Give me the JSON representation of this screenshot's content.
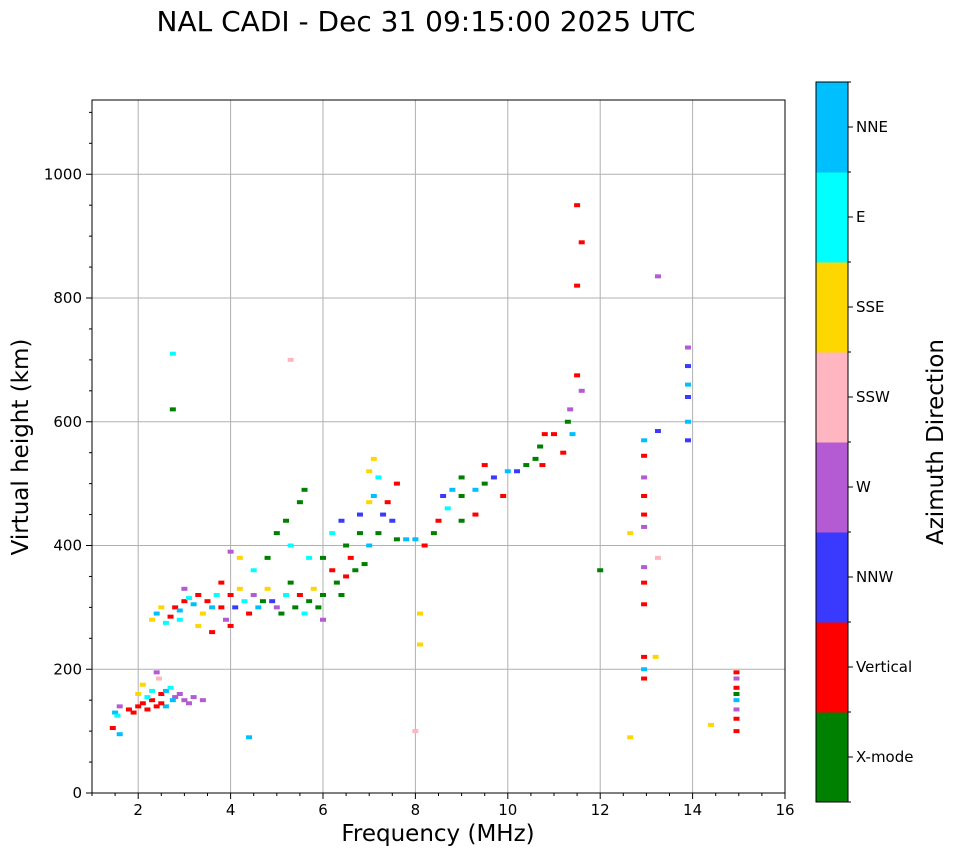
{
  "chart_data": {
    "type": "scatter",
    "title": "NAL CADI - Dec 31 09:15:00 2025 UTC",
    "xlabel": "Frequency (MHz)",
    "ylabel": "Virtual height (km)",
    "xlim": [
      1,
      16
    ],
    "ylim": [
      0,
      1120
    ],
    "xticks": [
      2,
      4,
      6,
      8,
      10,
      12,
      14,
      16
    ],
    "yticks": [
      0,
      200,
      400,
      600,
      800,
      1000
    ],
    "grid": true,
    "colorbar": {
      "label": "Azimuth Direction",
      "categories": [
        {
          "name": "X-mode",
          "color": "#008000"
        },
        {
          "name": "Vertical",
          "color": "#ff0000"
        },
        {
          "name": "NNW",
          "color": "#3a3aff"
        },
        {
          "name": "W",
          "color": "#b45ad2"
        },
        {
          "name": "SSW",
          "color": "#ffb6c1"
        },
        {
          "name": "SSE",
          "color": "#ffd700"
        },
        {
          "name": "E",
          "color": "#00ffff"
        },
        {
          "name": "NNE",
          "color": "#00bfff"
        }
      ]
    },
    "points": [
      [
        1.5,
        130,
        "NNE"
      ],
      [
        1.55,
        125,
        "E"
      ],
      [
        1.6,
        140,
        "W"
      ],
      [
        1.6,
        95,
        "NNE"
      ],
      [
        1.45,
        105,
        "Vertical"
      ],
      [
        1.8,
        135,
        "Vertical"
      ],
      [
        1.9,
        130,
        "Vertical"
      ],
      [
        2.0,
        140,
        "Vertical"
      ],
      [
        2.1,
        145,
        "Vertical"
      ],
      [
        2.2,
        135,
        "Vertical"
      ],
      [
        2.3,
        150,
        "Vertical"
      ],
      [
        2.4,
        140,
        "Vertical"
      ],
      [
        2.5,
        160,
        "Vertical"
      ],
      [
        2.0,
        160,
        "SSE"
      ],
      [
        2.1,
        175,
        "SSE"
      ],
      [
        2.4,
        195,
        "W"
      ],
      [
        2.45,
        185,
        "SSW"
      ],
      [
        2.6,
        165,
        "NNE"
      ],
      [
        2.7,
        170,
        "E"
      ],
      [
        2.8,
        155,
        "W"
      ],
      [
        2.9,
        160,
        "W"
      ],
      [
        3.0,
        150,
        "W"
      ],
      [
        3.1,
        145,
        "W"
      ],
      [
        3.2,
        155,
        "W"
      ],
      [
        3.4,
        150,
        "W"
      ],
      [
        2.75,
        150,
        "NNE"
      ],
      [
        2.6,
        140,
        "NNE"
      ],
      [
        2.2,
        155,
        "E"
      ],
      [
        2.3,
        165,
        "E"
      ],
      [
        2.5,
        145,
        "Vertical"
      ],
      [
        2.3,
        280,
        "SSE"
      ],
      [
        2.4,
        290,
        "NNE"
      ],
      [
        2.6,
        275,
        "E"
      ],
      [
        2.7,
        285,
        "Vertical"
      ],
      [
        2.8,
        300,
        "Vertical"
      ],
      [
        2.9,
        295,
        "NNE"
      ],
      [
        3.0,
        310,
        "Vertical"
      ],
      [
        3.0,
        330,
        "W"
      ],
      [
        3.1,
        315,
        "E"
      ],
      [
        3.2,
        305,
        "NNE"
      ],
      [
        3.3,
        320,
        "Vertical"
      ],
      [
        3.4,
        290,
        "SSE"
      ],
      [
        3.5,
        310,
        "Vertical"
      ],
      [
        3.6,
        300,
        "NNE"
      ],
      [
        3.7,
        320,
        "E"
      ],
      [
        3.8,
        300,
        "Vertical"
      ],
      [
        3.9,
        280,
        "W"
      ],
      [
        4.0,
        320,
        "Vertical"
      ],
      [
        4.0,
        270,
        "Vertical"
      ],
      [
        4.1,
        300,
        "NNW"
      ],
      [
        4.2,
        330,
        "SSE"
      ],
      [
        4.3,
        310,
        "E"
      ],
      [
        4.4,
        290,
        "Vertical"
      ],
      [
        4.5,
        320,
        "W"
      ],
      [
        4.6,
        300,
        "NNE"
      ],
      [
        4.7,
        310,
        "X-mode"
      ],
      [
        4.8,
        330,
        "SSE"
      ],
      [
        4.9,
        310,
        "NNW"
      ],
      [
        5.0,
        300,
        "W"
      ],
      [
        5.1,
        290,
        "X-mode"
      ],
      [
        5.2,
        320,
        "E"
      ],
      [
        5.3,
        340,
        "X-mode"
      ],
      [
        5.4,
        300,
        "X-mode"
      ],
      [
        5.5,
        320,
        "Vertical"
      ],
      [
        5.6,
        290,
        "E"
      ],
      [
        5.7,
        310,
        "X-mode"
      ],
      [
        5.8,
        330,
        "SSE"
      ],
      [
        5.9,
        300,
        "X-mode"
      ],
      [
        6.0,
        280,
        "W"
      ],
      [
        6.0,
        320,
        "X-mode"
      ],
      [
        3.6,
        260,
        "Vertical"
      ],
      [
        3.3,
        270,
        "SSE"
      ],
      [
        2.9,
        280,
        "E"
      ],
      [
        2.5,
        300,
        "SSE"
      ],
      [
        3.8,
        340,
        "Vertical"
      ],
      [
        4.0,
        390,
        "W"
      ],
      [
        4.2,
        380,
        "SSE"
      ],
      [
        4.5,
        360,
        "E"
      ],
      [
        4.8,
        380,
        "X-mode"
      ],
      [
        5.0,
        420,
        "X-mode"
      ],
      [
        5.2,
        440,
        "X-mode"
      ],
      [
        5.5,
        470,
        "X-mode"
      ],
      [
        5.6,
        490,
        "X-mode"
      ],
      [
        5.3,
        400,
        "E"
      ],
      [
        5.7,
        380,
        "E"
      ],
      [
        6.0,
        380,
        "X-mode"
      ],
      [
        6.2,
        360,
        "Vertical"
      ],
      [
        6.3,
        340,
        "X-mode"
      ],
      [
        6.4,
        320,
        "X-mode"
      ],
      [
        6.5,
        350,
        "Vertical"
      ],
      [
        6.2,
        420,
        "E"
      ],
      [
        6.4,
        440,
        "NNW"
      ],
      [
        6.5,
        400,
        "X-mode"
      ],
      [
        6.6,
        380,
        "Vertical"
      ],
      [
        6.7,
        360,
        "X-mode"
      ],
      [
        6.8,
        420,
        "X-mode"
      ],
      [
        6.8,
        450,
        "NNW"
      ],
      [
        6.9,
        370,
        "X-mode"
      ],
      [
        7.0,
        400,
        "NNE"
      ],
      [
        7.0,
        470,
        "SSE"
      ],
      [
        7.1,
        480,
        "NNE"
      ],
      [
        7.1,
        540,
        "SSE"
      ],
      [
        7.2,
        510,
        "E"
      ],
      [
        7.2,
        420,
        "X-mode"
      ],
      [
        7.3,
        450,
        "NNW"
      ],
      [
        7.4,
        470,
        "Vertical"
      ],
      [
        7.5,
        440,
        "NNW"
      ],
      [
        7.6,
        410,
        "X-mode"
      ],
      [
        7.6,
        500,
        "Vertical"
      ],
      [
        7.0,
        520,
        "SSE"
      ],
      [
        7.8,
        410,
        "NNE"
      ],
      [
        8.0,
        410,
        "NNE"
      ],
      [
        8.2,
        400,
        "Vertical"
      ],
      [
        8.4,
        420,
        "X-mode"
      ],
      [
        8.5,
        440,
        "Vertical"
      ],
      [
        8.6,
        480,
        "NNW"
      ],
      [
        8.7,
        460,
        "E"
      ],
      [
        8.8,
        490,
        "NNE"
      ],
      [
        9.0,
        440,
        "X-mode"
      ],
      [
        9.0,
        480,
        "X-mode"
      ],
      [
        9.0,
        510,
        "X-mode"
      ],
      [
        9.3,
        450,
        "Vertical"
      ],
      [
        9.3,
        490,
        "NNE"
      ],
      [
        9.5,
        500,
        "X-mode"
      ],
      [
        9.5,
        530,
        "Vertical"
      ],
      [
        9.7,
        510,
        "NNW"
      ],
      [
        9.9,
        480,
        "Vertical"
      ],
      [
        10.0,
        520,
        "NNE"
      ],
      [
        10.2,
        520,
        "NNW"
      ],
      [
        10.4,
        530,
        "X-mode"
      ],
      [
        10.6,
        540,
        "X-mode"
      ],
      [
        10.7,
        560,
        "X-mode"
      ],
      [
        10.75,
        530,
        "Vertical"
      ],
      [
        10.8,
        580,
        "Vertical"
      ],
      [
        11.0,
        580,
        "Vertical"
      ],
      [
        11.2,
        550,
        "Vertical"
      ],
      [
        11.3,
        600,
        "X-mode"
      ],
      [
        11.4,
        580,
        "NNE"
      ],
      [
        11.5,
        820,
        "Vertical"
      ],
      [
        11.5,
        950,
        "Vertical"
      ],
      [
        11.6,
        890,
        "Vertical"
      ],
      [
        11.5,
        675,
        "Vertical"
      ],
      [
        11.6,
        650,
        "W"
      ],
      [
        11.35,
        620,
        "W"
      ],
      [
        12.0,
        360,
        "X-mode"
      ],
      [
        12.65,
        420,
        "SSE"
      ],
      [
        12.95,
        570,
        "NNE"
      ],
      [
        12.95,
        545,
        "Vertical"
      ],
      [
        12.95,
        510,
        "W"
      ],
      [
        12.95,
        480,
        "Vertical"
      ],
      [
        12.95,
        450,
        "Vertical"
      ],
      [
        12.95,
        430,
        "W"
      ],
      [
        12.95,
        365,
        "W"
      ],
      [
        12.95,
        340,
        "Vertical"
      ],
      [
        12.95,
        305,
        "Vertical"
      ],
      [
        12.95,
        220,
        "Vertical"
      ],
      [
        12.95,
        200,
        "NNE"
      ],
      [
        12.95,
        185,
        "Vertical"
      ],
      [
        13.2,
        220,
        "SSE"
      ],
      [
        13.25,
        380,
        "SSW"
      ],
      [
        13.25,
        585,
        "NNW"
      ],
      [
        13.25,
        835,
        "W"
      ],
      [
        12.65,
        90,
        "SSE"
      ],
      [
        13.9,
        720,
        "W"
      ],
      [
        13.9,
        690,
        "NNW"
      ],
      [
        13.9,
        660,
        "NNE"
      ],
      [
        13.9,
        640,
        "NNW"
      ],
      [
        13.9,
        600,
        "NNE"
      ],
      [
        13.9,
        570,
        "NNW"
      ],
      [
        14.4,
        110,
        "SSE"
      ],
      [
        14.95,
        195,
        "Vertical"
      ],
      [
        14.95,
        170,
        "Vertical"
      ],
      [
        14.95,
        150,
        "NNE"
      ],
      [
        14.95,
        135,
        "W"
      ],
      [
        14.95,
        120,
        "Vertical"
      ],
      [
        14.95,
        100,
        "Vertical"
      ],
      [
        14.95,
        160,
        "X-mode"
      ],
      [
        14.95,
        185,
        "W"
      ],
      [
        8.1,
        290,
        "SSE"
      ],
      [
        8.1,
        240,
        "SSE"
      ],
      [
        8.0,
        100,
        "SSW"
      ],
      [
        4.4,
        90,
        "NNE"
      ],
      [
        2.75,
        710,
        "E"
      ],
      [
        2.75,
        620,
        "X-mode"
      ],
      [
        5.3,
        700,
        "SSW"
      ]
    ]
  }
}
